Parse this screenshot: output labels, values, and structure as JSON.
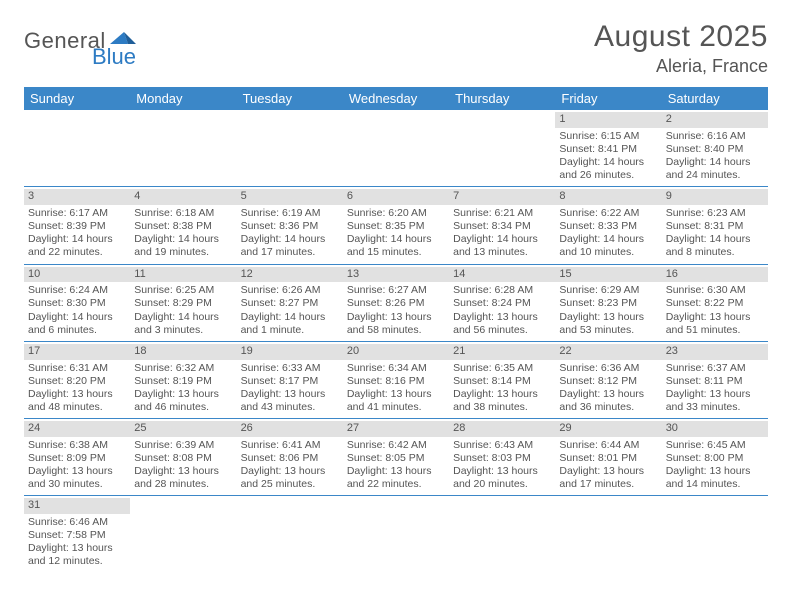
{
  "logo": {
    "text1": "General",
    "text2": "Blue"
  },
  "title": "August 2025",
  "location": "Aleria, France",
  "colors": {
    "header_bg": "#3b87c8",
    "header_text": "#ffffff",
    "daynum_bg": "#e1e1e1",
    "body_text": "#555555",
    "divider": "#3b87c8",
    "logo_blue": "#2d7bc3",
    "logo_dark": "#555555",
    "page_bg": "#ffffff"
  },
  "font": {
    "title_size": 30,
    "location_size": 18,
    "dow_size": 13,
    "body_size": 10.5
  },
  "dow": [
    "Sunday",
    "Monday",
    "Tuesday",
    "Wednesday",
    "Thursday",
    "Friday",
    "Saturday"
  ],
  "weeks": [
    [
      null,
      null,
      null,
      null,
      null,
      {
        "n": "1",
        "sunrise": "Sunrise: 6:15 AM",
        "sunset": "Sunset: 8:41 PM",
        "daylight": "Daylight: 14 hours and 26 minutes."
      },
      {
        "n": "2",
        "sunrise": "Sunrise: 6:16 AM",
        "sunset": "Sunset: 8:40 PM",
        "daylight": "Daylight: 14 hours and 24 minutes."
      }
    ],
    [
      {
        "n": "3",
        "sunrise": "Sunrise: 6:17 AM",
        "sunset": "Sunset: 8:39 PM",
        "daylight": "Daylight: 14 hours and 22 minutes."
      },
      {
        "n": "4",
        "sunrise": "Sunrise: 6:18 AM",
        "sunset": "Sunset: 8:38 PM",
        "daylight": "Daylight: 14 hours and 19 minutes."
      },
      {
        "n": "5",
        "sunrise": "Sunrise: 6:19 AM",
        "sunset": "Sunset: 8:36 PM",
        "daylight": "Daylight: 14 hours and 17 minutes."
      },
      {
        "n": "6",
        "sunrise": "Sunrise: 6:20 AM",
        "sunset": "Sunset: 8:35 PM",
        "daylight": "Daylight: 14 hours and 15 minutes."
      },
      {
        "n": "7",
        "sunrise": "Sunrise: 6:21 AM",
        "sunset": "Sunset: 8:34 PM",
        "daylight": "Daylight: 14 hours and 13 minutes."
      },
      {
        "n": "8",
        "sunrise": "Sunrise: 6:22 AM",
        "sunset": "Sunset: 8:33 PM",
        "daylight": "Daylight: 14 hours and 10 minutes."
      },
      {
        "n": "9",
        "sunrise": "Sunrise: 6:23 AM",
        "sunset": "Sunset: 8:31 PM",
        "daylight": "Daylight: 14 hours and 8 minutes."
      }
    ],
    [
      {
        "n": "10",
        "sunrise": "Sunrise: 6:24 AM",
        "sunset": "Sunset: 8:30 PM",
        "daylight": "Daylight: 14 hours and 6 minutes."
      },
      {
        "n": "11",
        "sunrise": "Sunrise: 6:25 AM",
        "sunset": "Sunset: 8:29 PM",
        "daylight": "Daylight: 14 hours and 3 minutes."
      },
      {
        "n": "12",
        "sunrise": "Sunrise: 6:26 AM",
        "sunset": "Sunset: 8:27 PM",
        "daylight": "Daylight: 14 hours and 1 minute."
      },
      {
        "n": "13",
        "sunrise": "Sunrise: 6:27 AM",
        "sunset": "Sunset: 8:26 PM",
        "daylight": "Daylight: 13 hours and 58 minutes."
      },
      {
        "n": "14",
        "sunrise": "Sunrise: 6:28 AM",
        "sunset": "Sunset: 8:24 PM",
        "daylight": "Daylight: 13 hours and 56 minutes."
      },
      {
        "n": "15",
        "sunrise": "Sunrise: 6:29 AM",
        "sunset": "Sunset: 8:23 PM",
        "daylight": "Daylight: 13 hours and 53 minutes."
      },
      {
        "n": "16",
        "sunrise": "Sunrise: 6:30 AM",
        "sunset": "Sunset: 8:22 PM",
        "daylight": "Daylight: 13 hours and 51 minutes."
      }
    ],
    [
      {
        "n": "17",
        "sunrise": "Sunrise: 6:31 AM",
        "sunset": "Sunset: 8:20 PM",
        "daylight": "Daylight: 13 hours and 48 minutes."
      },
      {
        "n": "18",
        "sunrise": "Sunrise: 6:32 AM",
        "sunset": "Sunset: 8:19 PM",
        "daylight": "Daylight: 13 hours and 46 minutes."
      },
      {
        "n": "19",
        "sunrise": "Sunrise: 6:33 AM",
        "sunset": "Sunset: 8:17 PM",
        "daylight": "Daylight: 13 hours and 43 minutes."
      },
      {
        "n": "20",
        "sunrise": "Sunrise: 6:34 AM",
        "sunset": "Sunset: 8:16 PM",
        "daylight": "Daylight: 13 hours and 41 minutes."
      },
      {
        "n": "21",
        "sunrise": "Sunrise: 6:35 AM",
        "sunset": "Sunset: 8:14 PM",
        "daylight": "Daylight: 13 hours and 38 minutes."
      },
      {
        "n": "22",
        "sunrise": "Sunrise: 6:36 AM",
        "sunset": "Sunset: 8:12 PM",
        "daylight": "Daylight: 13 hours and 36 minutes."
      },
      {
        "n": "23",
        "sunrise": "Sunrise: 6:37 AM",
        "sunset": "Sunset: 8:11 PM",
        "daylight": "Daylight: 13 hours and 33 minutes."
      }
    ],
    [
      {
        "n": "24",
        "sunrise": "Sunrise: 6:38 AM",
        "sunset": "Sunset: 8:09 PM",
        "daylight": "Daylight: 13 hours and 30 minutes."
      },
      {
        "n": "25",
        "sunrise": "Sunrise: 6:39 AM",
        "sunset": "Sunset: 8:08 PM",
        "daylight": "Daylight: 13 hours and 28 minutes."
      },
      {
        "n": "26",
        "sunrise": "Sunrise: 6:41 AM",
        "sunset": "Sunset: 8:06 PM",
        "daylight": "Daylight: 13 hours and 25 minutes."
      },
      {
        "n": "27",
        "sunrise": "Sunrise: 6:42 AM",
        "sunset": "Sunset: 8:05 PM",
        "daylight": "Daylight: 13 hours and 22 minutes."
      },
      {
        "n": "28",
        "sunrise": "Sunrise: 6:43 AM",
        "sunset": "Sunset: 8:03 PM",
        "daylight": "Daylight: 13 hours and 20 minutes."
      },
      {
        "n": "29",
        "sunrise": "Sunrise: 6:44 AM",
        "sunset": "Sunset: 8:01 PM",
        "daylight": "Daylight: 13 hours and 17 minutes."
      },
      {
        "n": "30",
        "sunrise": "Sunrise: 6:45 AM",
        "sunset": "Sunset: 8:00 PM",
        "daylight": "Daylight: 13 hours and 14 minutes."
      }
    ],
    [
      {
        "n": "31",
        "sunrise": "Sunrise: 6:46 AM",
        "sunset": "Sunset: 7:58 PM",
        "daylight": "Daylight: 13 hours and 12 minutes."
      },
      null,
      null,
      null,
      null,
      null,
      null
    ]
  ]
}
